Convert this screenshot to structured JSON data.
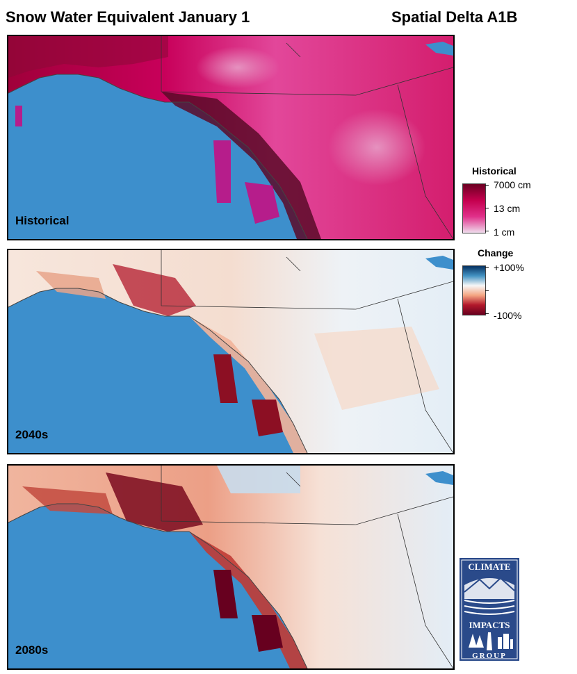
{
  "titles": {
    "left": "Snow Water Equivalent January 1",
    "right": "Spatial Delta A1B"
  },
  "panels": [
    {
      "label": "Historical",
      "kind": "historical"
    },
    {
      "label": "2040s",
      "kind": "change-2040s"
    },
    {
      "label": "2080s",
      "kind": "change-2080s"
    }
  ],
  "legend_historical": {
    "title": "Historical",
    "high": "7000 cm",
    "mid": "13 cm",
    "low": "1 cm",
    "colors": [
      "#6b0021",
      "#c4004e",
      "#e0308a",
      "#efdcec"
    ]
  },
  "legend_change": {
    "title": "Change",
    "high": "+100%",
    "low": "-100%",
    "colors": [
      "#053061",
      "#4393c3",
      "#f7f7f7",
      "#f4a582",
      "#b2182b",
      "#67001f"
    ]
  },
  "colors": {
    "ocean": "#3d8fcc"
  },
  "logo": {
    "top_text": "CLIMATE",
    "middle_text": "IMPACTS",
    "bottom_text": "GROUP",
    "color": "#2a4a8a"
  }
}
